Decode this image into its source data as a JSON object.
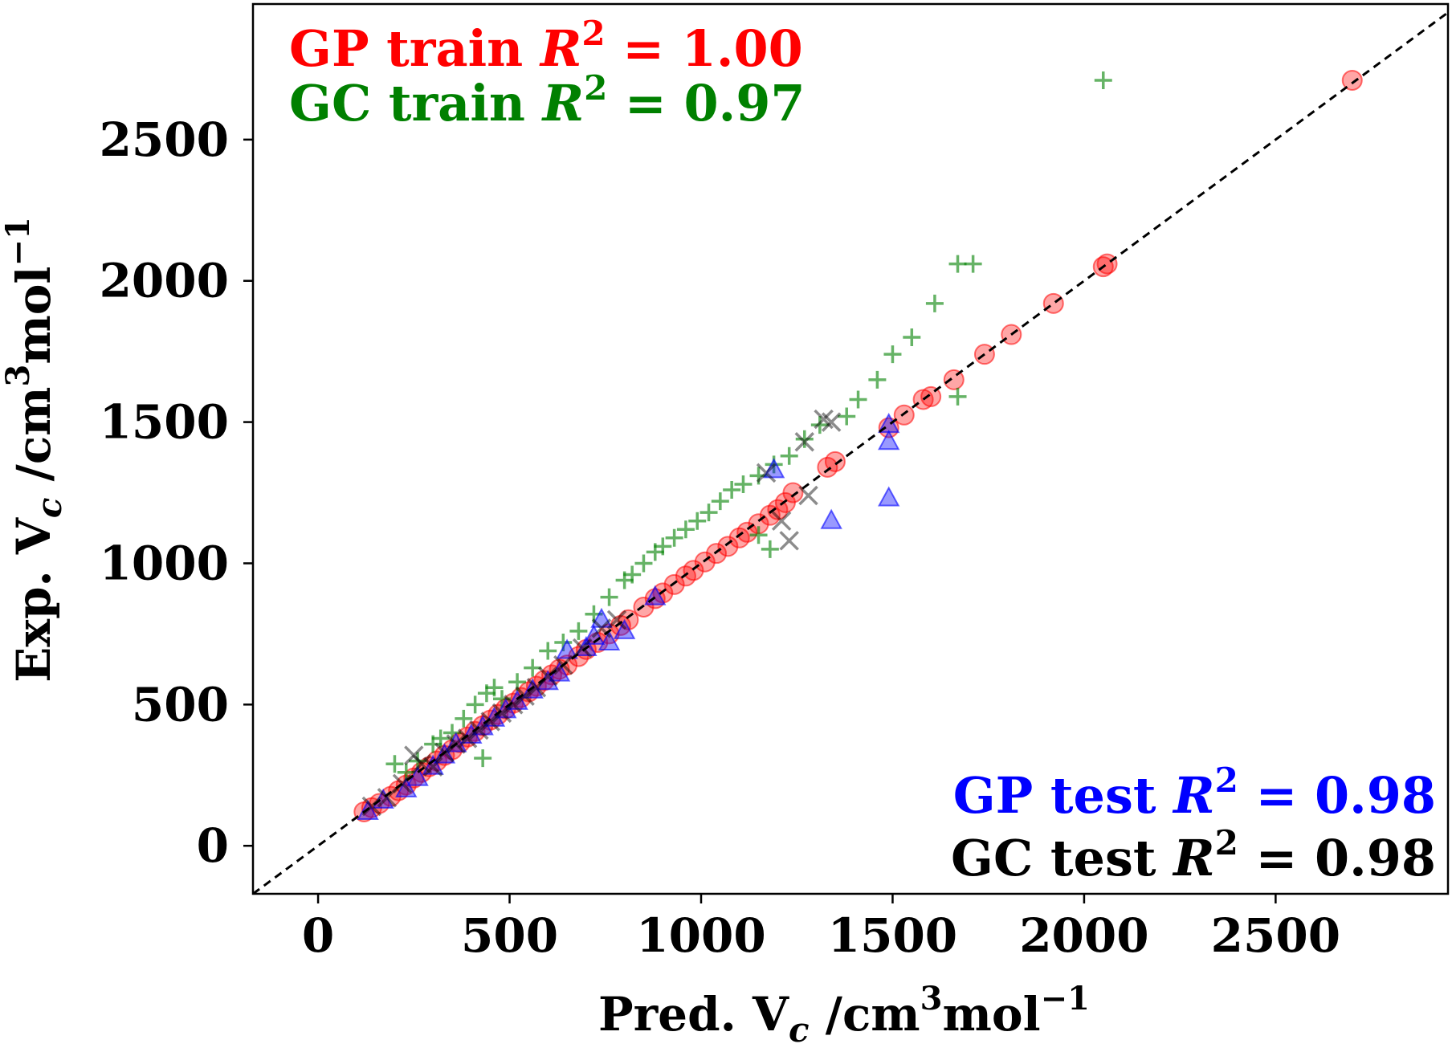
{
  "chart_data": {
    "type": "scatter",
    "xlabel": {
      "main": "Pred. V",
      "sub": "c",
      "unit": " /cm",
      "sup1": "3",
      "unit2": "mol",
      "sup2": "−1"
    },
    "ylabel": {
      "main": "Exp. V",
      "sub": "c",
      "unit": " /cm",
      "sup1": "3",
      "unit2": "mol",
      "sup2": "−1"
    },
    "xlim": [
      -170,
      2950
    ],
    "ylim": [
      -170,
      2980
    ],
    "xticks": [
      0,
      500,
      1000,
      1500,
      2000,
      2500
    ],
    "yticks": [
      0,
      500,
      1000,
      1500,
      2000,
      2500
    ],
    "grid": false,
    "reference_line": "y = x (dashed, black)",
    "annotations": [
      {
        "prefix": "GP train ",
        "var": "R",
        "exp": "2",
        "suffix": " = 1.00",
        "color": "#ff0000",
        "position": "top-left"
      },
      {
        "prefix": "GC train ",
        "var": "R",
        "exp": "2",
        "suffix": " = 0.97",
        "color": "#008000",
        "position": "top-left"
      },
      {
        "prefix": "GP test ",
        "var": "R",
        "exp": "2",
        "suffix": " = 0.98",
        "color": "#0000ff",
        "position": "bottom-right"
      },
      {
        "prefix": "GC test ",
        "var": "R",
        "exp": "2",
        "suffix": " = 0.98",
        "color": "#000000",
        "position": "bottom-right"
      }
    ],
    "series": [
      {
        "label": "GP train",
        "marker": "circle",
        "color": "#ff0000",
        "points": [
          [
            120,
            120
          ],
          [
            140,
            135
          ],
          [
            160,
            150
          ],
          [
            190,
            175
          ],
          [
            210,
            195
          ],
          [
            230,
            215
          ],
          [
            250,
            240
          ],
          [
            270,
            260
          ],
          [
            290,
            280
          ],
          [
            310,
            300
          ],
          [
            330,
            320
          ],
          [
            350,
            340
          ],
          [
            370,
            365
          ],
          [
            390,
            385
          ],
          [
            410,
            405
          ],
          [
            430,
            425
          ],
          [
            450,
            445
          ],
          [
            470,
            465
          ],
          [
            490,
            485
          ],
          [
            510,
            505
          ],
          [
            530,
            525
          ],
          [
            550,
            545
          ],
          [
            570,
            565
          ],
          [
            590,
            585
          ],
          [
            610,
            605
          ],
          [
            630,
            625
          ],
          [
            650,
            640
          ],
          [
            680,
            670
          ],
          [
            700,
            695
          ],
          [
            730,
            720
          ],
          [
            760,
            750
          ],
          [
            790,
            780
          ],
          [
            810,
            800
          ],
          [
            850,
            845
          ],
          [
            880,
            875
          ],
          [
            900,
            895
          ],
          [
            930,
            925
          ],
          [
            960,
            955
          ],
          [
            980,
            975
          ],
          [
            1010,
            1005
          ],
          [
            1040,
            1035
          ],
          [
            1070,
            1060
          ],
          [
            1100,
            1090
          ],
          [
            1120,
            1110
          ],
          [
            1150,
            1140
          ],
          [
            1180,
            1170
          ],
          [
            1200,
            1190
          ],
          [
            1220,
            1215
          ],
          [
            1240,
            1250
          ],
          [
            1330,
            1340
          ],
          [
            1350,
            1360
          ],
          [
            1490,
            1480
          ],
          [
            1530,
            1525
          ],
          [
            1580,
            1580
          ],
          [
            1600,
            1590
          ],
          [
            1660,
            1650
          ],
          [
            1740,
            1740
          ],
          [
            1810,
            1810
          ],
          [
            1920,
            1920
          ],
          [
            2050,
            2050
          ],
          [
            2060,
            2060
          ],
          [
            2700,
            2710
          ]
        ]
      },
      {
        "label": "GC train",
        "marker": "plus",
        "color": "#008000",
        "points": [
          [
            200,
            290
          ],
          [
            230,
            260
          ],
          [
            260,
            300
          ],
          [
            300,
            360
          ],
          [
            320,
            380
          ],
          [
            350,
            400
          ],
          [
            380,
            450
          ],
          [
            410,
            500
          ],
          [
            440,
            540
          ],
          [
            460,
            560
          ],
          [
            430,
            310
          ],
          [
            480,
            520
          ],
          [
            520,
            580
          ],
          [
            560,
            630
          ],
          [
            600,
            690
          ],
          [
            640,
            720
          ],
          [
            680,
            760
          ],
          [
            720,
            820
          ],
          [
            760,
            880
          ],
          [
            800,
            940
          ],
          [
            820,
            960
          ],
          [
            850,
            1000
          ],
          [
            880,
            1040
          ],
          [
            900,
            1060
          ],
          [
            930,
            1090
          ],
          [
            960,
            1120
          ],
          [
            990,
            1150
          ],
          [
            1020,
            1180
          ],
          [
            1050,
            1220
          ],
          [
            1080,
            1260
          ],
          [
            1110,
            1280
          ],
          [
            1150,
            1310
          ],
          [
            1190,
            1350
          ],
          [
            1230,
            1380
          ],
          [
            1270,
            1440
          ],
          [
            1310,
            1490
          ],
          [
            1380,
            1520
          ],
          [
            1410,
            1580
          ],
          [
            1460,
            1650
          ],
          [
            1500,
            1740
          ],
          [
            1550,
            1800
          ],
          [
            1610,
            1920
          ],
          [
            1670,
            2060
          ],
          [
            1710,
            2060
          ],
          [
            1670,
            1590
          ],
          [
            2050,
            2710
          ],
          [
            1180,
            1050
          ],
          [
            1150,
            1100
          ]
        ]
      },
      {
        "label": "GP test",
        "marker": "triangle",
        "color": "#0000ff",
        "points": [
          [
            130,
            120
          ],
          [
            170,
            160
          ],
          [
            230,
            200
          ],
          [
            260,
            240
          ],
          [
            300,
            280
          ],
          [
            330,
            320
          ],
          [
            360,
            360
          ],
          [
            400,
            390
          ],
          [
            430,
            420
          ],
          [
            460,
            450
          ],
          [
            490,
            480
          ],
          [
            520,
            510
          ],
          [
            560,
            550
          ],
          [
            600,
            580
          ],
          [
            630,
            610
          ],
          [
            650,
            690
          ],
          [
            700,
            700
          ],
          [
            720,
            740
          ],
          [
            740,
            800
          ],
          [
            760,
            720
          ],
          [
            800,
            760
          ],
          [
            880,
            880
          ],
          [
            1190,
            1330
          ],
          [
            1340,
            1150
          ],
          [
            1490,
            1230
          ],
          [
            1490,
            1430
          ],
          [
            1490,
            1490
          ]
        ]
      },
      {
        "label": "GC test",
        "marker": "x",
        "color": "#000000",
        "points": [
          [
            140,
            140
          ],
          [
            180,
            170
          ],
          [
            220,
            220
          ],
          [
            250,
            320
          ],
          [
            270,
            290
          ],
          [
            300,
            280
          ],
          [
            330,
            330
          ],
          [
            360,
            360
          ],
          [
            390,
            380
          ],
          [
            420,
            410
          ],
          [
            450,
            440
          ],
          [
            480,
            470
          ],
          [
            510,
            500
          ],
          [
            540,
            530
          ],
          [
            570,
            560
          ],
          [
            600,
            600
          ],
          [
            640,
            640
          ],
          [
            690,
            700
          ],
          [
            740,
            770
          ],
          [
            780,
            800
          ],
          [
            1170,
            1320
          ],
          [
            1210,
            1150
          ],
          [
            1230,
            1080
          ],
          [
            1280,
            1240
          ],
          [
            1270,
            1430
          ],
          [
            1320,
            1510
          ],
          [
            1340,
            1500
          ]
        ]
      }
    ]
  }
}
